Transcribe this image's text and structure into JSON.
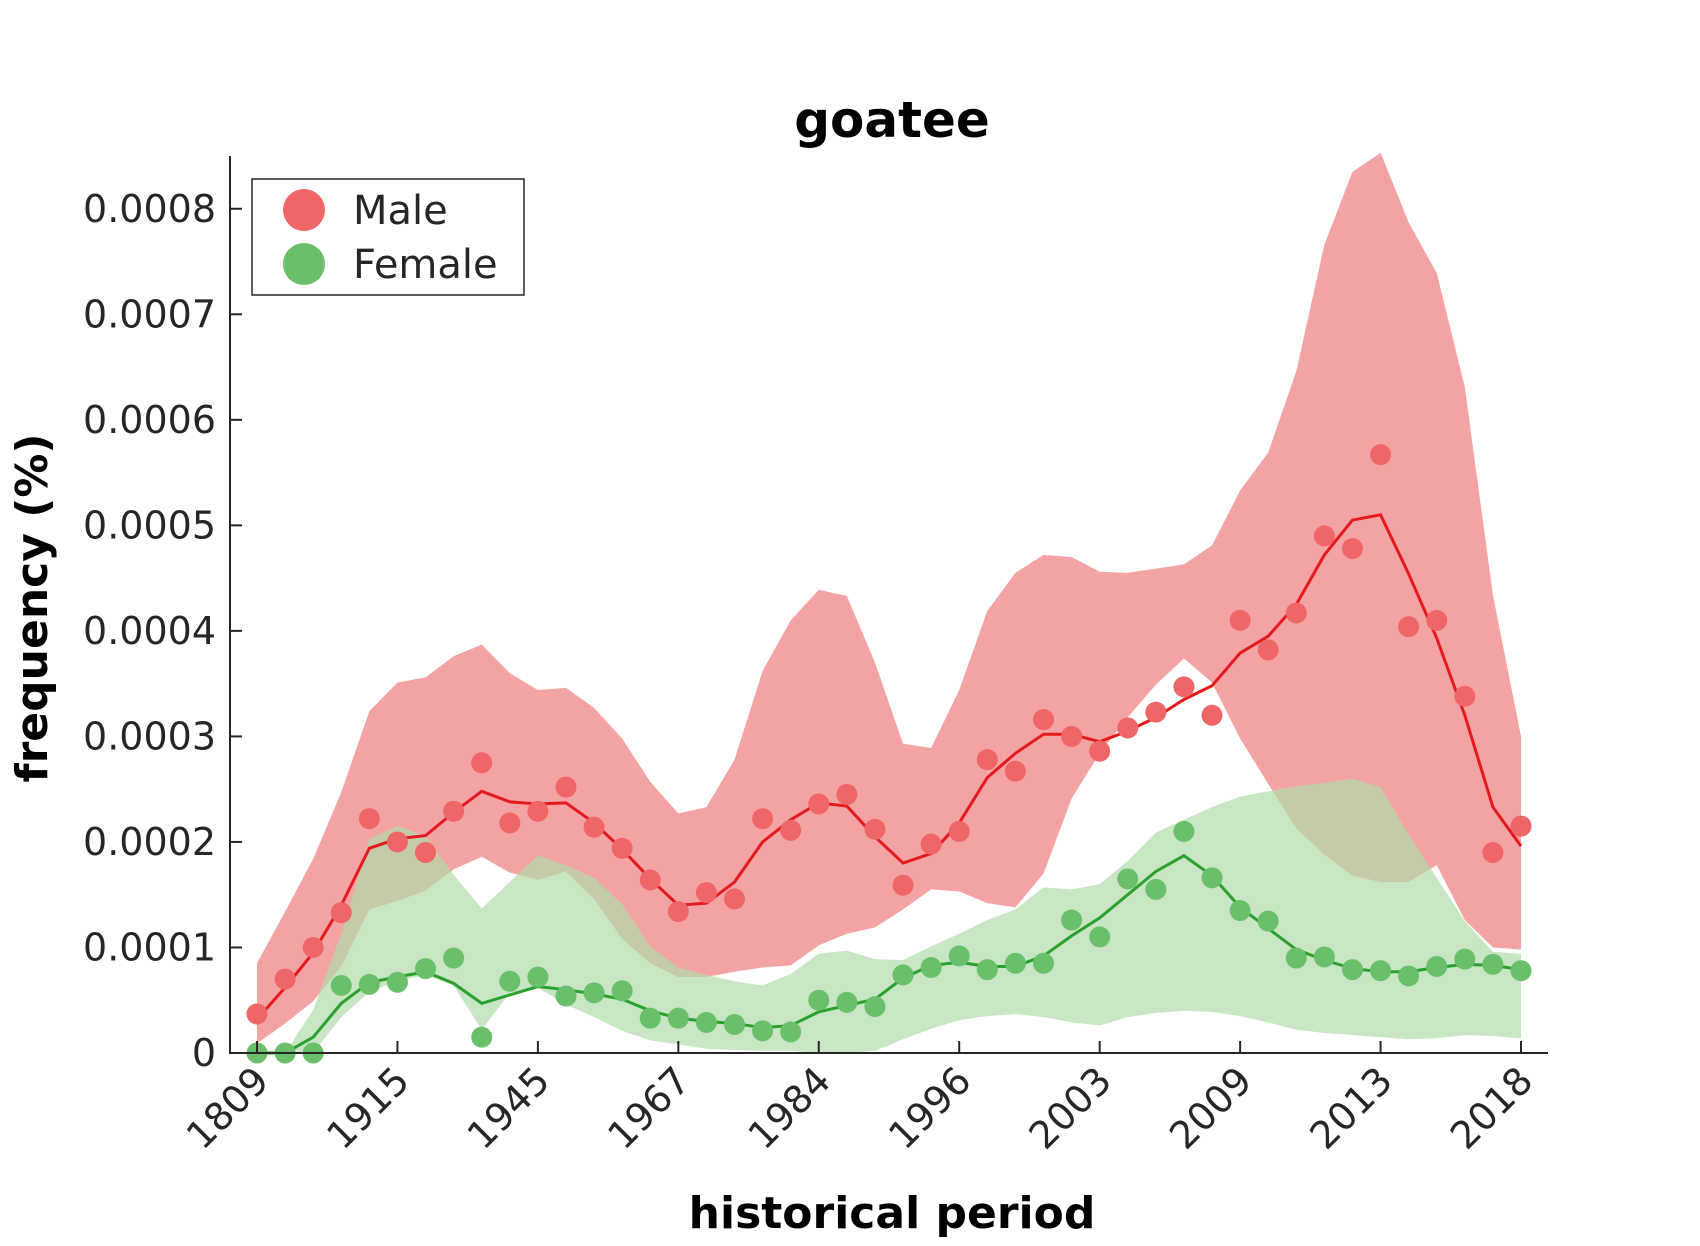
{
  "chart_data": {
    "type": "line",
    "title": "goatee",
    "xlabel": "historical period",
    "ylabel": "frequency (%)",
    "ylim": [
      0,
      0.00085
    ],
    "y_ticks": [
      0,
      0.0001,
      0.0002,
      0.0003,
      0.0004,
      0.0005,
      0.0006,
      0.0007,
      0.0008
    ],
    "y_tick_labels": [
      "0",
      "0.0001",
      "0.0002",
      "0.0003",
      "0.0004",
      "0.0005",
      "0.0006",
      "0.0007",
      "0.0008"
    ],
    "x_ticks": [
      1,
      6,
      11,
      16,
      21,
      26,
      31,
      36,
      41,
      46
    ],
    "x_tick_labels": [
      "1809",
      "1915",
      "1945",
      "1967",
      "1984",
      "1996",
      "2003",
      "2009",
      "2013",
      "2018"
    ],
    "xlim": [
      1,
      46
    ],
    "legend_position": "top-left",
    "grid": false,
    "series": [
      {
        "name": "Male",
        "color": "#e41a1c",
        "point_color": "#ee6666",
        "band_color": "#f4a3a4",
        "points": [
          3.7e-05,
          7e-05,
          0.0001,
          0.000133,
          0.000222,
          0.0002,
          0.00019,
          0.000229,
          0.000275,
          0.000218,
          0.000229,
          0.000252,
          0.000214,
          0.000194,
          0.000164,
          0.000134,
          0.000152,
          0.000146,
          0.000222,
          0.000211,
          0.000236,
          0.000245,
          0.000212,
          0.000159,
          0.000198,
          0.00021,
          0.000278,
          0.000267,
          0.000316,
          0.0003,
          0.000286,
          0.000308,
          0.000323,
          0.000347,
          0.00032,
          0.00041,
          0.000382,
          0.000417,
          0.00049,
          0.000478,
          0.000567,
          0.000404,
          0.00041,
          0.000338,
          0.00019,
          0.000215
        ],
        "smooth": [
          3.2e-05,
          6.2e-05,
          9.5e-05,
          0.00014,
          0.000194,
          0.000203,
          0.000206,
          0.000228,
          0.000248,
          0.000238,
          0.000236,
          0.000237,
          0.000218,
          0.000193,
          0.000165,
          0.00014,
          0.000142,
          0.000162,
          0.0002,
          0.000221,
          0.000237,
          0.000234,
          0.000205,
          0.00018,
          0.000189,
          0.000218,
          0.000261,
          0.000284,
          0.000302,
          0.000302,
          0.000295,
          0.000305,
          0.000318,
          0.000335,
          0.000348,
          0.000379,
          0.000395,
          0.000425,
          0.000472,
          0.000505,
          0.00051,
          0.000454,
          0.000393,
          0.00032,
          0.000233,
          0.000196
        ],
        "band_upper": [
          8.5e-05,
          0.000134,
          0.000184,
          0.000247,
          0.000324,
          0.000351,
          0.000356,
          0.000376,
          0.000387,
          0.00036,
          0.000344,
          0.000346,
          0.000327,
          0.000298,
          0.000257,
          0.000227,
          0.000233,
          0.000278,
          0.000362,
          0.00041,
          0.000439,
          0.000433,
          0.00037,
          0.000293,
          0.000289,
          0.000344,
          0.000419,
          0.000455,
          0.000472,
          0.00047,
          0.000456,
          0.000455,
          0.000459,
          0.000463,
          0.000481,
          0.000533,
          0.000569,
          0.000646,
          0.000766,
          0.000835,
          0.000853,
          0.000787,
          0.000739,
          0.000631,
          0.000434,
          0.0003
        ],
        "band_lower": [
          9e-06,
          2.8e-05,
          4.9e-05,
          8.2e-05,
          0.000136,
          0.000144,
          0.000154,
          0.000174,
          0.000186,
          0.000171,
          0.000164,
          0.000172,
          0.000146,
          0.000108,
          8.5e-05,
          7.2e-05,
          7.2e-05,
          7.7e-05,
          8.1e-05,
          8.3e-05,
          0.000102,
          0.000113,
          0.000119,
          0.000136,
          0.000155,
          0.000153,
          0.000142,
          0.000138,
          0.00017,
          0.000241,
          0.000284,
          0.000318,
          0.000349,
          0.000374,
          0.000351,
          0.000298,
          0.000255,
          0.000213,
          0.000188,
          0.000168,
          0.000162,
          0.000162,
          0.000178,
          0.000126,
          0.0001,
          9.8e-05
        ]
      },
      {
        "name": "Female",
        "color": "#2ca02c",
        "point_color": "#6abf6a",
        "band_color": "#b1dbab",
        "points": [
          0,
          0,
          0,
          6.4e-05,
          6.5e-05,
          6.7e-05,
          8e-05,
          9e-05,
          1.5e-05,
          6.8e-05,
          7.2e-05,
          5.4e-05,
          5.7e-05,
          5.9e-05,
          3.3e-05,
          3.3e-05,
          2.9e-05,
          2.7e-05,
          2.1e-05,
          2e-05,
          5e-05,
          4.8e-05,
          4.4e-05,
          7.4e-05,
          8.1e-05,
          9.2e-05,
          7.9e-05,
          8.5e-05,
          8.5e-05,
          0.000126,
          0.00011,
          0.000165,
          0.000155,
          0.00021,
          0.000166,
          0.000135,
          0.000125,
          9e-05,
          9.1e-05,
          7.9e-05,
          7.8e-05,
          7.3e-05,
          8.2e-05,
          8.9e-05,
          8.4e-05,
          7.8e-05
        ],
        "smooth": [
          0,
          0,
          1.5e-05,
          4.7e-05,
          6.7e-05,
          7.2e-05,
          7.7e-05,
          6.6e-05,
          4.7e-05,
          5.5e-05,
          6.3e-05,
          6e-05,
          5.6e-05,
          5.1e-05,
          4e-05,
          3.3e-05,
          3e-05,
          2.8e-05,
          2.4e-05,
          2.6e-05,
          3.9e-05,
          4.5e-05,
          5.1e-05,
          7.1e-05,
          8.3e-05,
          8.6e-05,
          8.2e-05,
          8.2e-05,
          9.2e-05,
          0.000111,
          0.000128,
          0.00015,
          0.000172,
          0.000187,
          0.000168,
          0.000138,
          0.000118,
          9.8e-05,
          8.8e-05,
          8e-05,
          7.7e-05,
          7.7e-05,
          8.1e-05,
          8.4e-05,
          8.3e-05,
          7.9e-05
        ],
        "band_upper": [
          0,
          0,
          4.1e-05,
          0.000113,
          0.000203,
          0.000215,
          0.000206,
          0.000169,
          0.000137,
          0.000162,
          0.000187,
          0.000178,
          0.000166,
          0.000141,
          0.000101,
          8.1e-05,
          7.4e-05,
          6.8e-05,
          6.4e-05,
          7.5e-05,
          9.4e-05,
          9.7e-05,
          8.9e-05,
          8.8e-05,
          0.000101,
          0.000113,
          0.000126,
          0.000136,
          0.000157,
          0.000155,
          0.00016,
          0.000182,
          0.000209,
          0.000221,
          0.000233,
          0.000243,
          0.000248,
          0.000253,
          0.000256,
          0.00026,
          0.000252,
          0.000207,
          0.000166,
          0.000125,
          9.6e-05,
          9.4e-05
        ],
        "band_lower": [
          0,
          0,
          0,
          3.4e-05,
          5.8e-05,
          6.8e-05,
          7.4e-05,
          6.4e-05,
          2.2e-05,
          5.7e-05,
          6.2e-05,
          4.6e-05,
          3.4e-05,
          2.1e-05,
          1.2e-05,
          8e-06,
          4e-06,
          3e-06,
          2e-06,
          2e-06,
          0.0,
          0.0,
          2e-06,
          1.3e-05,
          2.3e-05,
          3.1e-05,
          3.5e-05,
          3.7e-05,
          3.4e-05,
          2.9e-05,
          2.6e-05,
          3.4e-05,
          3.8e-05,
          4e-05,
          3.9e-05,
          3.5e-05,
          2.9e-05,
          2.2e-05,
          1.9e-05,
          1.7e-05,
          1.5e-05,
          1.3e-05,
          1.4e-05,
          1.7e-05,
          1.6e-05,
          1.4e-05
        ]
      }
    ]
  }
}
